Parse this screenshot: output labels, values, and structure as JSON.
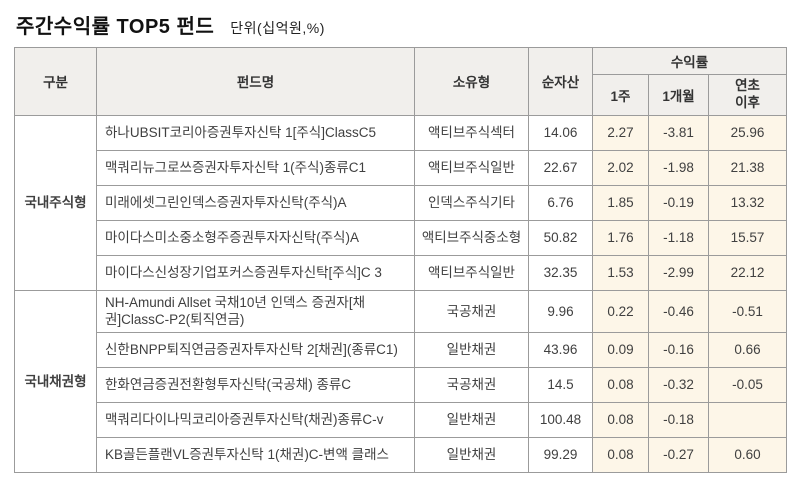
{
  "title": "주간수익률 TOP5 펀드",
  "unit": "단위(십억원,%)",
  "table": {
    "headers": {
      "category": "구분",
      "fund_name": "펀드명",
      "sub_type": "소유형",
      "net_assets": "순자산",
      "returns": "수익률",
      "week1": "1주",
      "month1": "1개월",
      "ytd": "연초이후"
    },
    "groups": [
      {
        "category": "국내주식형",
        "rows": [
          {
            "fund_name": "하나UBSIT코리아증권투자신탁 1[주식]ClassC5",
            "sub_type": "액티브주식섹터",
            "net_assets": "14.06",
            "week1": "2.27",
            "month1": "-3.81",
            "ytd": "25.96"
          },
          {
            "fund_name": "맥쿼리뉴그로쓰증권자투자신탁 1(주식)종류C1",
            "sub_type": "액티브주식일반",
            "net_assets": "22.67",
            "week1": "2.02",
            "month1": "-1.98",
            "ytd": "21.38"
          },
          {
            "fund_name": "미래에셋그린인덱스증권자투자신탁(주식)A",
            "sub_type": "인덱스주식기타",
            "net_assets": "6.76",
            "week1": "1.85",
            "month1": "-0.19",
            "ytd": "13.32"
          },
          {
            "fund_name": "마이다스미소중소형주증권투자자신탁(주식)A",
            "sub_type": "액티브주식중소형",
            "net_assets": "50.82",
            "week1": "1.76",
            "month1": "-1.18",
            "ytd": "15.57"
          },
          {
            "fund_name": "마이다스신성장기업포커스증권투자신탁[주식]C 3",
            "sub_type": "액티브주식일반",
            "net_assets": "32.35",
            "week1": "1.53",
            "month1": "-2.99",
            "ytd": "22.12"
          }
        ]
      },
      {
        "category": "국내채권형",
        "rows": [
          {
            "fund_name": "NH-Amundi Allset 국채10년 인덱스 증권자[채권]ClassC-P2(퇴직연금)",
            "sub_type": "국공채권",
            "net_assets": "9.96",
            "week1": "0.22",
            "month1": "-0.46",
            "ytd": "-0.51"
          },
          {
            "fund_name": "신한BNPP퇴직연금증권자투자신탁 2[채권](종류C1)",
            "sub_type": "일반채권",
            "net_assets": "43.96",
            "week1": "0.09",
            "month1": "-0.16",
            "ytd": "0.66"
          },
          {
            "fund_name": "한화연금증권전환형투자신탁(국공채) 종류C",
            "sub_type": "국공채권",
            "net_assets": "14.5",
            "week1": "0.08",
            "month1": "-0.32",
            "ytd": "-0.05"
          },
          {
            "fund_name": "맥쿼리다이나믹코리아증권투자신탁(채권)종류C-v",
            "sub_type": "일반채권",
            "net_assets": "100.48",
            "week1": "0.08",
            "month1": "-0.18",
            "ytd": ""
          },
          {
            "fund_name": "KB골든플랜VL증권투자신탁 1(채권)C-변액 클래스",
            "sub_type": "일반채권",
            "net_assets": "99.29",
            "week1": "0.08",
            "month1": "-0.27",
            "ytd": "0.60"
          }
        ]
      }
    ]
  }
}
